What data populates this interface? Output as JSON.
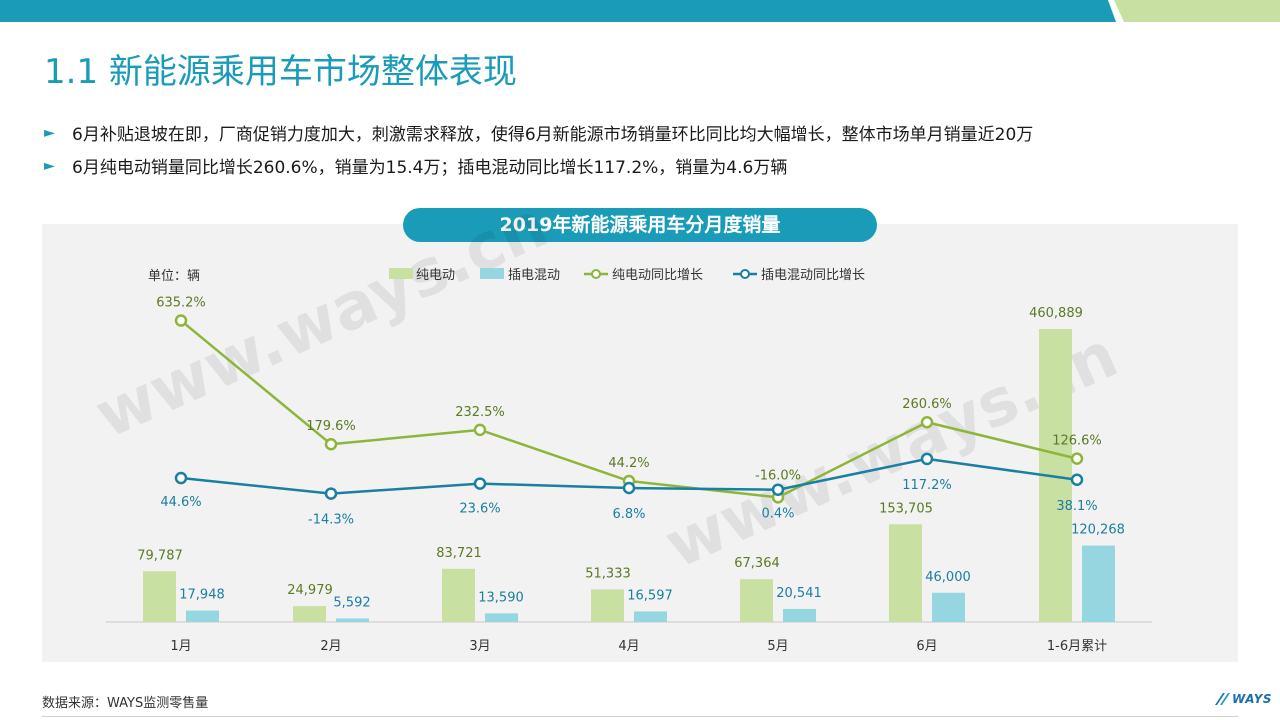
{
  "slide": {
    "title": "1.1 新能源乘用车市场整体表现",
    "bullets": [
      "6月补贴退坡在即，厂商促销力度加大，刺激需求释放，使得6月新能源市场销量环比同比均大幅增长，整体市场单月销量近20万",
      "6月纯电动销量同比增长260.6%，销量为15.4万；插电混动同比增长117.2%，销量为4.6万辆"
    ],
    "source": "数据来源：WAYS监测零售量",
    "logo_text": "WAYS",
    "watermark": "www.ways.cn"
  },
  "colors": {
    "accent": "#1a9bb8",
    "bev_bar": "#c8e0a2",
    "phev_bar": "#96d6e0",
    "bev_line": "#8db53a",
    "phev_line": "#1a7fa1",
    "topbar_right": "#c8e0a2"
  },
  "chart_data": {
    "type": "bar+line",
    "title": "2019年新能源乘用车分月度销量",
    "unit_label": "单位：辆",
    "categories": [
      "1月",
      "2月",
      "3月",
      "4月",
      "5月",
      "6月",
      "1-6月累计"
    ],
    "bar_series": [
      {
        "name": "纯电动",
        "values": [
          79787,
          24979,
          83721,
          51333,
          67364,
          153705,
          460889
        ],
        "labels": [
          "79,787",
          "24,979",
          "83,721",
          "51,333",
          "67,364",
          "153,705",
          "460,889"
        ]
      },
      {
        "name": "插电混动",
        "values": [
          17948,
          5592,
          13590,
          16597,
          20541,
          46000,
          120268
        ],
        "labels": [
          "17,948",
          "5,592",
          "13,590",
          "16,597",
          "20,541",
          "46,000",
          "120,268"
        ]
      }
    ],
    "line_series": [
      {
        "name": "纯电动同比增长",
        "values": [
          635.2,
          179.6,
          232.5,
          44.2,
          -16.0,
          260.6,
          126.6
        ],
        "labels": [
          "635.2%",
          "179.6%",
          "232.5%",
          "44.2%",
          "-16.0%",
          "260.6%",
          "126.6%"
        ]
      },
      {
        "name": "插电混动同比增长",
        "values": [
          44.6,
          -14.3,
          23.6,
          6.8,
          0.4,
          117.2,
          38.1
        ],
        "labels": [
          "44.6%",
          "-14.3%",
          "23.6%",
          "6.8%",
          "0.4%",
          "117.2%",
          "38.1%"
        ]
      }
    ],
    "legend_position": "top"
  }
}
